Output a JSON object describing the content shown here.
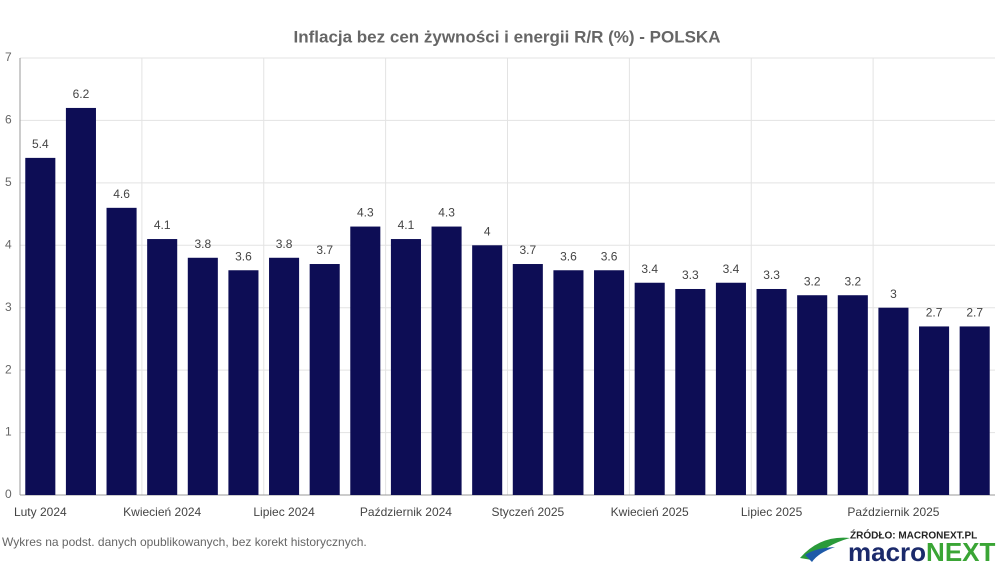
{
  "chart_data": {
    "type": "bar",
    "title": "Inflacja bez cen żywności i energii R/R (%) - POLSKA",
    "categories": [
      "Luty 2024",
      null,
      null,
      "Kwiecień 2024",
      null,
      null,
      "Lipiec 2024",
      null,
      null,
      "Październik 2024",
      null,
      null,
      "Styczeń 2025",
      null,
      null,
      "Kwiecień 2025",
      null,
      null,
      "Lipiec 2025",
      null,
      null,
      "Październik 2025",
      null,
      null
    ],
    "values": [
      5.4,
      6.2,
      4.6,
      4.1,
      3.8,
      3.6,
      3.8,
      3.7,
      4.3,
      4.1,
      4.3,
      4,
      3.7,
      3.6,
      3.6,
      3.4,
      3.3,
      3.4,
      3.3,
      3.2,
      3.2,
      3,
      2.7,
      2.7
    ],
    "color": "#0d0d55",
    "ylim": [
      0,
      7
    ],
    "yticks": [
      0,
      1,
      2,
      3,
      4,
      5,
      6,
      7
    ],
    "grid": true
  },
  "footer": {
    "note": "Wykres na podst. danych opublikowanych, bez korekt historycznych.",
    "source": "ŹRÓDŁO: MACRONEXT.PL",
    "logo_left": "macro",
    "logo_right": "NEXT"
  }
}
